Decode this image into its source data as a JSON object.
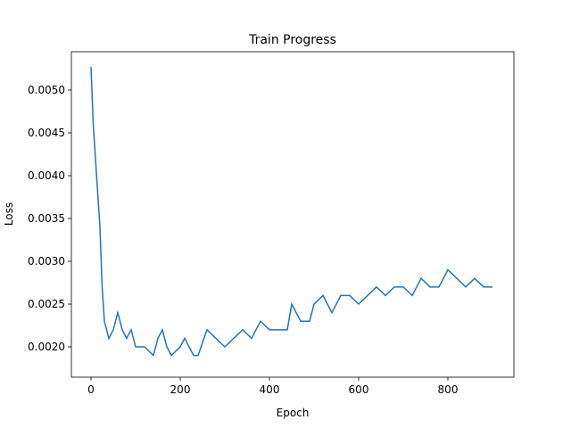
{
  "chart_data": {
    "type": "line",
    "title": "Train Progress",
    "x_label": "Epoch",
    "y_label": "Loss",
    "x": [
      0,
      5,
      10,
      15,
      20,
      25,
      30,
      40,
      50,
      60,
      70,
      80,
      90,
      100,
      120,
      140,
      150,
      160,
      170,
      180,
      200,
      210,
      230,
      240,
      260,
      280,
      300,
      320,
      340,
      360,
      380,
      400,
      420,
      440,
      450,
      470,
      490,
      500,
      520,
      540,
      560,
      580,
      600,
      620,
      640,
      660,
      680,
      700,
      720,
      740,
      760,
      780,
      800,
      820,
      840,
      860,
      880,
      900
    ],
    "series": [
      {
        "name": "Loss",
        "color": "#1f77b4",
        "values": [
          0.00527,
          0.0046,
          0.0042,
          0.0038,
          0.0034,
          0.0027,
          0.0023,
          0.0021,
          0.0022,
          0.0024,
          0.0022,
          0.0021,
          0.0022,
          0.002,
          0.002,
          0.0019,
          0.0021,
          0.0022,
          0.002,
          0.0019,
          0.002,
          0.0021,
          0.0019,
          0.0019,
          0.0022,
          0.0021,
          0.002,
          0.0021,
          0.0022,
          0.0021,
          0.0023,
          0.0022,
          0.0022,
          0.0022,
          0.0025,
          0.0023,
          0.0023,
          0.0025,
          0.0026,
          0.0024,
          0.0026,
          0.0026,
          0.0025,
          0.0026,
          0.0027,
          0.0026,
          0.0027,
          0.0027,
          0.0026,
          0.0028,
          0.0027,
          0.0027,
          0.0029,
          0.0028,
          0.0027,
          0.0028,
          0.0027,
          0.0027
        ]
      }
    ],
    "xlim": [
      -44,
      948
    ],
    "ylim": [
      0.001646,
      0.005448
    ],
    "xticks": [
      0,
      200,
      400,
      600,
      800
    ],
    "yticks": [
      {
        "value": 0.002,
        "label": "0.0020"
      },
      {
        "value": 0.0025,
        "label": "0.0025"
      },
      {
        "value": 0.003,
        "label": "0.0030"
      },
      {
        "value": 0.0035,
        "label": "0.0035"
      },
      {
        "value": 0.004,
        "label": "0.0040"
      },
      {
        "value": 0.0045,
        "label": "0.0045"
      },
      {
        "value": 0.005,
        "label": "0.0050"
      }
    ]
  }
}
